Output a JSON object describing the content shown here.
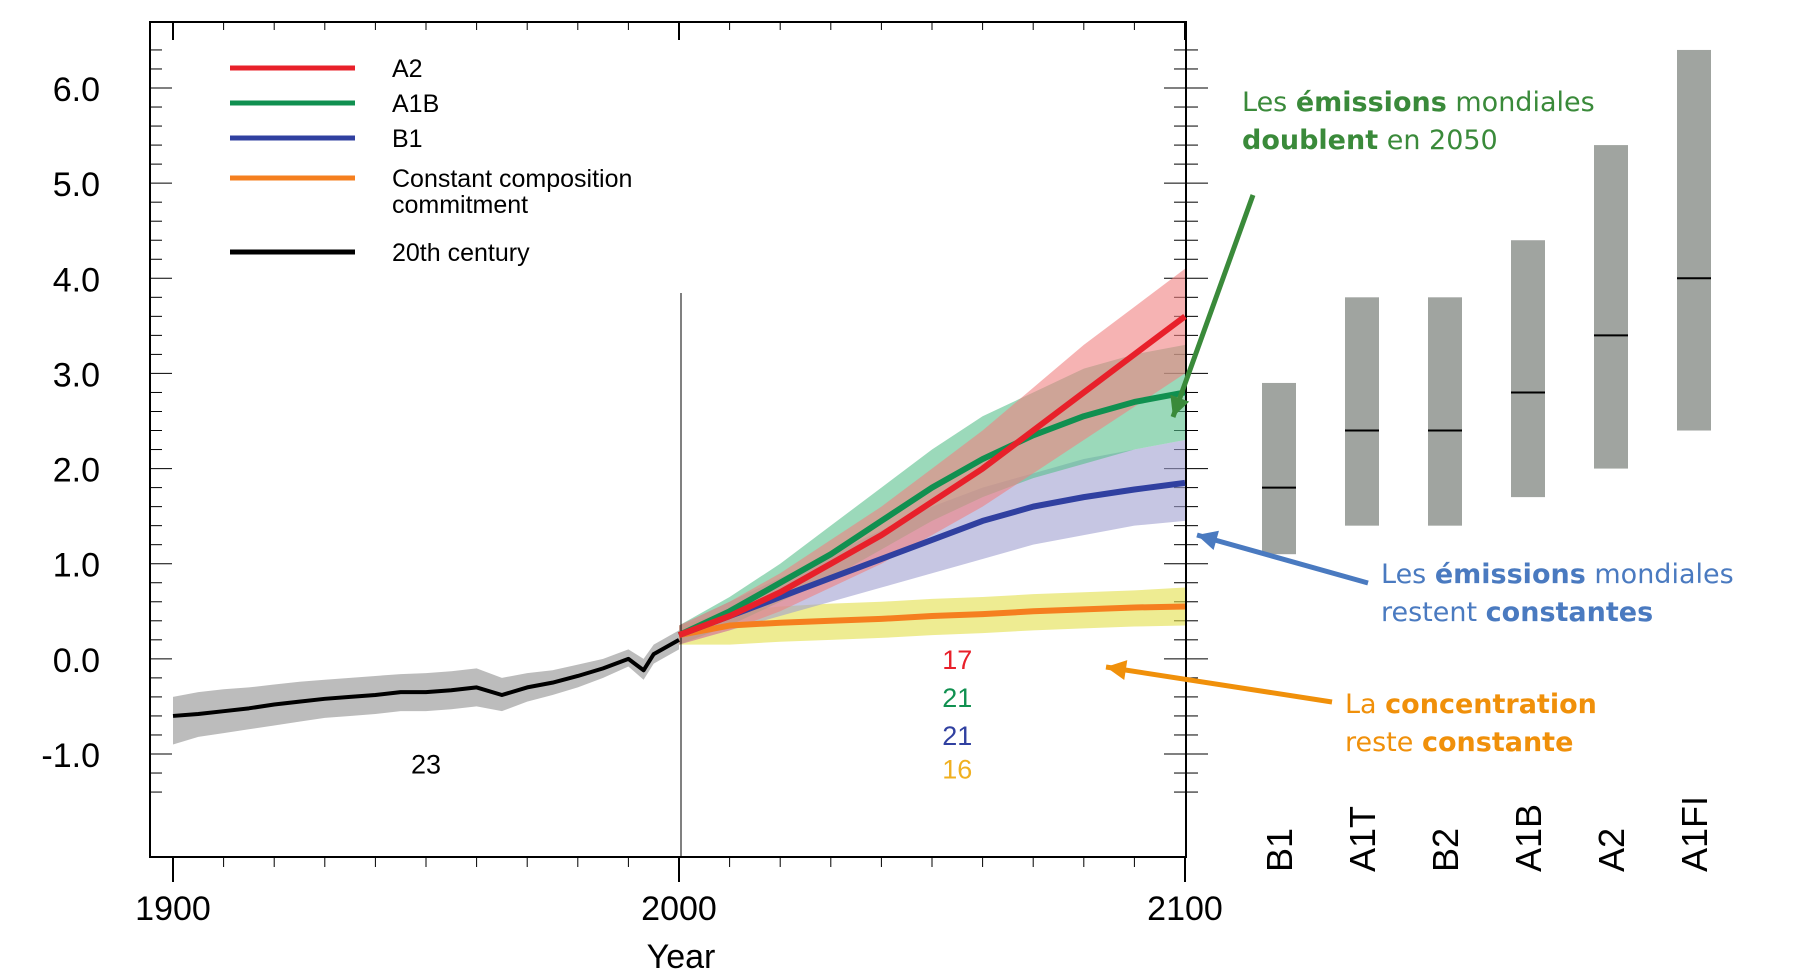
{
  "chart_data": {
    "type": "line",
    "xlabel": "Year",
    "x_ticks": [
      "1900",
      "2000",
      "2100"
    ],
    "xlim": [
      1900,
      2100
    ],
    "y_ticks": [
      "-1.0",
      "0.0",
      "1.0",
      "2.0",
      "3.0",
      "4.0",
      "5.0",
      "6.0"
    ],
    "ylim": [
      -1.4,
      6.6
    ],
    "legend_position": "top-left",
    "series": [
      {
        "name": "A2",
        "color": "#e8202a",
        "band_color": "#f08080",
        "x": [
          2000,
          2010,
          2020,
          2030,
          2040,
          2050,
          2060,
          2070,
          2080,
          2090,
          2100
        ],
        "y": [
          0.25,
          0.45,
          0.7,
          1.0,
          1.3,
          1.65,
          2.0,
          2.4,
          2.8,
          3.2,
          3.6
        ],
        "band_low": [
          0.15,
          0.3,
          0.5,
          0.75,
          1.0,
          1.3,
          1.6,
          1.95,
          2.3,
          2.65,
          3.0
        ],
        "band_high": [
          0.35,
          0.6,
          0.9,
          1.25,
          1.6,
          2.0,
          2.4,
          2.85,
          3.3,
          3.7,
          4.1
        ]
      },
      {
        "name": "A1B",
        "color": "#109050",
        "band_color": "#58c08c",
        "x": [
          2000,
          2010,
          2020,
          2030,
          2040,
          2050,
          2060,
          2070,
          2080,
          2090,
          2100
        ],
        "y": [
          0.25,
          0.5,
          0.8,
          1.1,
          1.45,
          1.8,
          2.1,
          2.35,
          2.55,
          2.7,
          2.8
        ],
        "band_low": [
          0.15,
          0.35,
          0.6,
          0.85,
          1.15,
          1.45,
          1.7,
          1.9,
          2.05,
          2.2,
          2.3
        ],
        "band_high": [
          0.35,
          0.65,
          1.0,
          1.4,
          1.8,
          2.2,
          2.55,
          2.8,
          3.05,
          3.2,
          3.3
        ]
      },
      {
        "name": "B1",
        "color": "#3040a0",
        "band_color": "#a0a0d0",
        "x": [
          2000,
          2010,
          2020,
          2030,
          2040,
          2050,
          2060,
          2070,
          2080,
          2090,
          2100
        ],
        "y": [
          0.25,
          0.45,
          0.65,
          0.85,
          1.05,
          1.25,
          1.45,
          1.6,
          1.7,
          1.78,
          1.85
        ],
        "band_low": [
          0.15,
          0.3,
          0.45,
          0.6,
          0.75,
          0.9,
          1.05,
          1.2,
          1.3,
          1.4,
          1.45
        ],
        "band_high": [
          0.35,
          0.6,
          0.85,
          1.1,
          1.35,
          1.6,
          1.8,
          1.95,
          2.1,
          2.2,
          2.3
        ]
      },
      {
        "name": "Constant composition commitment",
        "color": "#f57f1f",
        "band_color": "#e3e04a",
        "x": [
          2000,
          2010,
          2020,
          2030,
          2040,
          2050,
          2060,
          2070,
          2080,
          2090,
          2100
        ],
        "y": [
          0.25,
          0.35,
          0.38,
          0.4,
          0.42,
          0.45,
          0.47,
          0.5,
          0.52,
          0.54,
          0.55
        ],
        "band_low": [
          0.15,
          0.15,
          0.18,
          0.2,
          0.22,
          0.25,
          0.27,
          0.3,
          0.32,
          0.34,
          0.35
        ],
        "band_high": [
          0.35,
          0.5,
          0.55,
          0.58,
          0.6,
          0.63,
          0.65,
          0.68,
          0.7,
          0.72,
          0.75
        ]
      },
      {
        "name": "20th century",
        "color": "#000000",
        "band_color": "#909090",
        "x": [
          1900,
          1905,
          1910,
          1915,
          1920,
          1925,
          1930,
          1935,
          1940,
          1945,
          1950,
          1955,
          1960,
          1965,
          1970,
          1975,
          1980,
          1985,
          1990,
          1993,
          1995,
          2000
        ],
        "y": [
          -0.6,
          -0.58,
          -0.55,
          -0.52,
          -0.48,
          -0.45,
          -0.42,
          -0.4,
          -0.38,
          -0.35,
          -0.35,
          -0.33,
          -0.3,
          -0.38,
          -0.3,
          -0.25,
          -0.18,
          -0.1,
          0.0,
          -0.12,
          0.05,
          0.2
        ],
        "band_low": [
          -0.9,
          -0.82,
          -0.78,
          -0.74,
          -0.7,
          -0.66,
          -0.62,
          -0.6,
          -0.58,
          -0.55,
          -0.55,
          -0.53,
          -0.5,
          -0.55,
          -0.45,
          -0.38,
          -0.3,
          -0.2,
          -0.08,
          -0.22,
          -0.05,
          0.1
        ],
        "band_high": [
          -0.4,
          -0.35,
          -0.32,
          -0.3,
          -0.27,
          -0.24,
          -0.22,
          -0.2,
          -0.18,
          -0.16,
          -0.15,
          -0.13,
          -0.1,
          -0.2,
          -0.15,
          -0.12,
          -0.06,
          0.0,
          0.1,
          0.0,
          0.15,
          0.3
        ]
      }
    ],
    "legend_labels": [
      "A2",
      "A1B",
      "B1",
      "Constant composition",
      "commitment",
      "20th century"
    ],
    "model_counts": [
      {
        "text": "23",
        "color": "#000000",
        "x": 1950,
        "y": -1.1
      },
      {
        "text": "17",
        "color": "#e8202a",
        "x": 2055,
        "y": 0.0
      },
      {
        "text": "21",
        "color": "#109050",
        "x": 2055,
        "y": -0.4
      },
      {
        "text": "21",
        "color": "#3040a0",
        "x": 2055,
        "y": -0.8
      },
      {
        "text": "16",
        "color": "#f0b020",
        "x": 2055,
        "y": -1.15
      }
    ],
    "bars": {
      "categories": [
        "B1",
        "A1T",
        "B2",
        "A1B",
        "A2",
        "A1FI"
      ],
      "low": [
        1.1,
        1.4,
        1.4,
        1.7,
        2.0,
        2.4
      ],
      "mid": [
        1.8,
        2.4,
        2.4,
        2.8,
        3.4,
        4.0
      ],
      "high": [
        2.9,
        3.8,
        3.8,
        4.4,
        5.4,
        6.4
      ],
      "color": "#a0a4a0"
    }
  },
  "annotations": {
    "green": {
      "l1_pre": "Les ",
      "l1_bold": "émissions",
      "l1_post": " mondiales",
      "l2_bold": "doublent",
      "l2_post": " en 2050",
      "color": "#3a8a3a"
    },
    "blue": {
      "l1_pre": "Les ",
      "l1_bold": "émissions",
      "l1_post": " mondiales",
      "l2_pre": "restent ",
      "l2_bold": "constantes",
      "color": "#4a7ac0"
    },
    "orange": {
      "l1_pre": "La ",
      "l1_bold": "concentration",
      "l2_pre": "reste ",
      "l2_bold": "constante",
      "color": "#f0900a"
    }
  }
}
